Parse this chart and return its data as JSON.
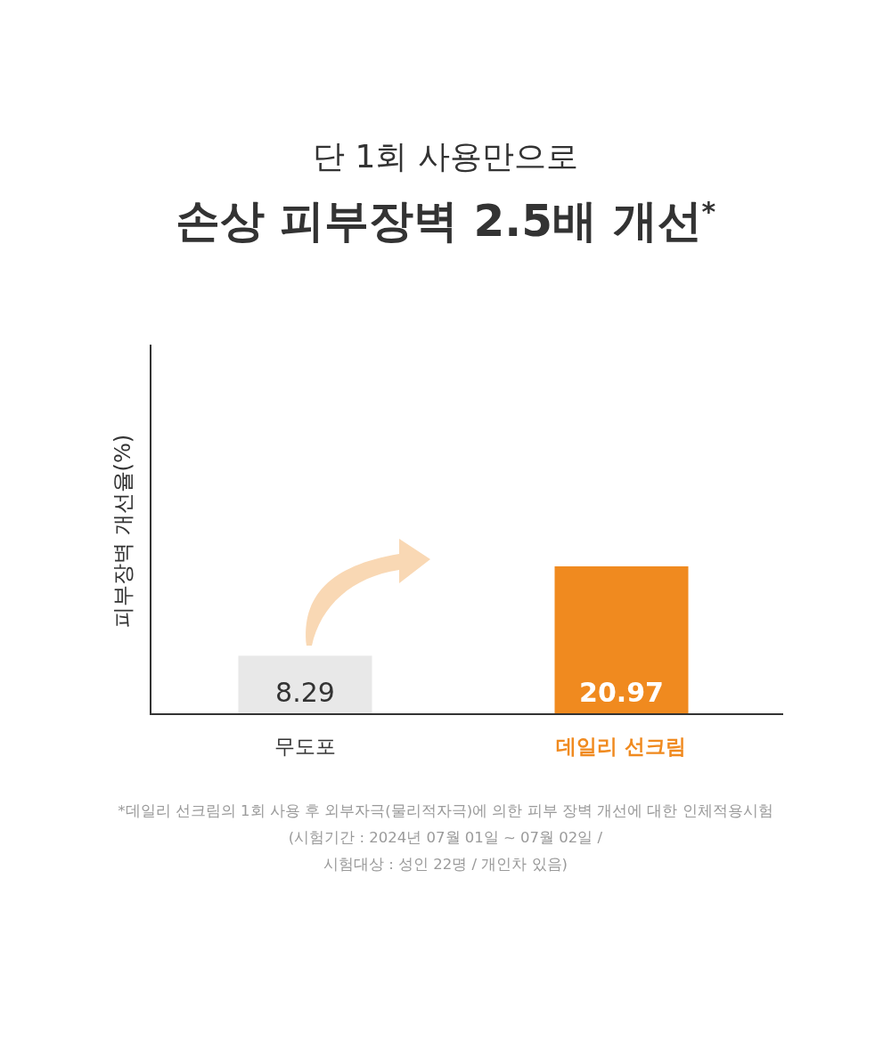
{
  "chart_data": {
    "type": "bar",
    "subtitle": "단 1회 사용만으로",
    "title": "손상 피부장벽 2.5배 개선$^{*}$",
    "ylabel": "피부장벽 개선율(%)",
    "categories": [
      "무도포",
      "데일리 선크림"
    ],
    "values": [
      8.29,
      20.97
    ],
    "colors": [
      "#e8e8e8",
      "#f08a1f"
    ],
    "data_labels": true,
    "annotations": [
      "*데일리 선크림의 1회 사용 후 외부자극(물리적자극)에 의한 피부 장벽 개선에 대한 인체적용시험",
      "(시험기간 : 2024년 07월 01일 ~ 07월 02일 /",
      "시험대상 : 성인 22명 / 개인차 있음)"
    ]
  }
}
